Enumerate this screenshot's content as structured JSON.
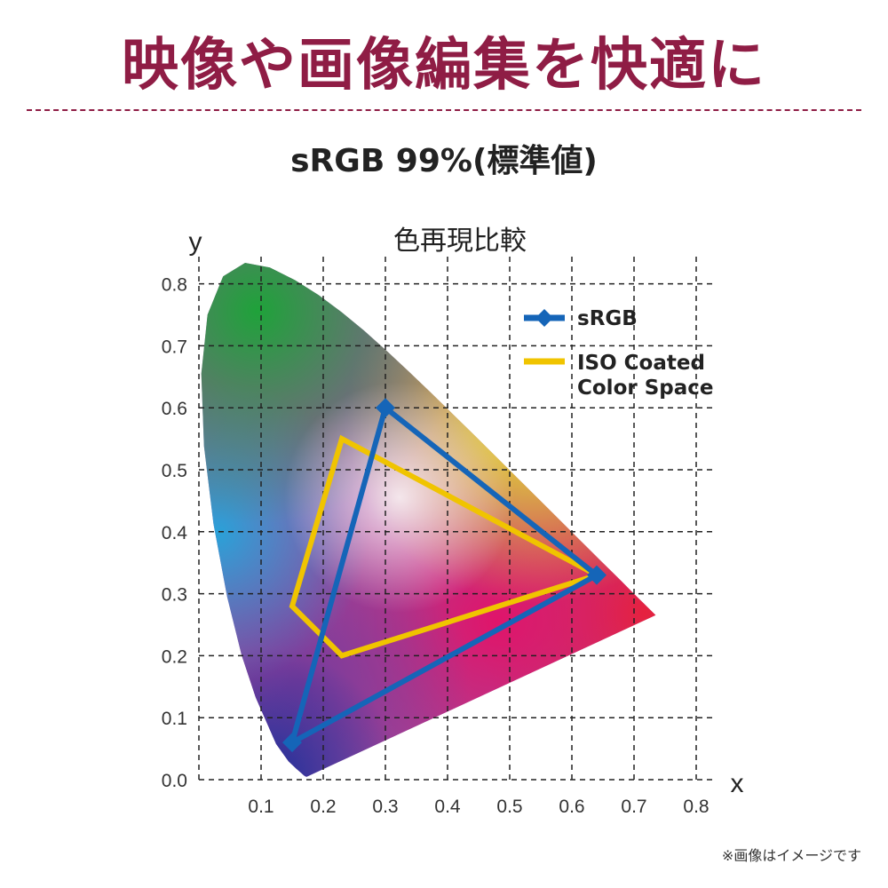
{
  "header": {
    "title": "映像や画像編集を快適に",
    "subtitle": "sRGB 99%(標準値)",
    "title_color": "#8f1d45"
  },
  "footnote": "※画像はイメージです",
  "chart_data": {
    "type": "line",
    "title": "色再現比較",
    "xlabel": "x",
    "ylabel": "y",
    "xlim": [
      0,
      0.8
    ],
    "ylim": [
      0,
      0.8
    ],
    "x_ticks": [
      "0.1",
      "0.2",
      "0.3",
      "0.4",
      "0.5",
      "0.6",
      "0.7",
      "0.8"
    ],
    "y_ticks": [
      "0.0",
      "0.1",
      "0.2",
      "0.3",
      "0.4",
      "0.5",
      "0.6",
      "0.7",
      "0.8"
    ],
    "grid": true,
    "legend_position": "top-right",
    "series": [
      {
        "name": "sRGB",
        "color": "#1565b8",
        "marker": "diamond",
        "closed": true,
        "points": [
          [
            0.3,
            0.6
          ],
          [
            0.64,
            0.33
          ],
          [
            0.15,
            0.06
          ]
        ]
      },
      {
        "name": "ISO Coated Color Space",
        "color": "#f0c400",
        "marker": "none",
        "closed": true,
        "points": [
          [
            0.23,
            0.55
          ],
          [
            0.64,
            0.33
          ],
          [
            0.23,
            0.2
          ],
          [
            0.15,
            0.28
          ]
        ]
      }
    ],
    "legend_labels": [
      {
        "lines": [
          "sRGB"
        ]
      },
      {
        "lines": [
          "ISO Coated",
          "Color Space"
        ]
      }
    ],
    "spectral_locus": [
      [
        0.1741,
        0.005
      ],
      [
        0.1738,
        0.0049
      ],
      [
        0.1721,
        0.0048
      ],
      [
        0.1689,
        0.0069
      ],
      [
        0.1644,
        0.0109
      ],
      [
        0.1566,
        0.0177
      ],
      [
        0.144,
        0.0297
      ],
      [
        0.1241,
        0.0578
      ],
      [
        0.0913,
        0.1327
      ],
      [
        0.0687,
        0.2007
      ],
      [
        0.0454,
        0.295
      ],
      [
        0.0235,
        0.4127
      ],
      [
        0.0082,
        0.5384
      ],
      [
        0.0039,
        0.6548
      ],
      [
        0.0139,
        0.7502
      ],
      [
        0.0389,
        0.812
      ],
      [
        0.0743,
        0.8338
      ],
      [
        0.1142,
        0.8262
      ],
      [
        0.1547,
        0.8059
      ],
      [
        0.1929,
        0.7816
      ],
      [
        0.2296,
        0.7543
      ],
      [
        0.2658,
        0.7243
      ],
      [
        0.3016,
        0.6923
      ],
      [
        0.3373,
        0.6589
      ],
      [
        0.3731,
        0.6245
      ],
      [
        0.4087,
        0.5896
      ],
      [
        0.4441,
        0.5547
      ],
      [
        0.4788,
        0.5202
      ],
      [
        0.5125,
        0.4866
      ],
      [
        0.5448,
        0.4544
      ],
      [
        0.5752,
        0.4242
      ],
      [
        0.6029,
        0.3965
      ],
      [
        0.627,
        0.3725
      ],
      [
        0.6482,
        0.3514
      ],
      [
        0.6658,
        0.334
      ],
      [
        0.6801,
        0.3197
      ],
      [
        0.6915,
        0.3083
      ],
      [
        0.7006,
        0.2993
      ],
      [
        0.7079,
        0.292
      ],
      [
        0.714,
        0.2859
      ],
      [
        0.7347,
        0.2653
      ]
    ]
  }
}
